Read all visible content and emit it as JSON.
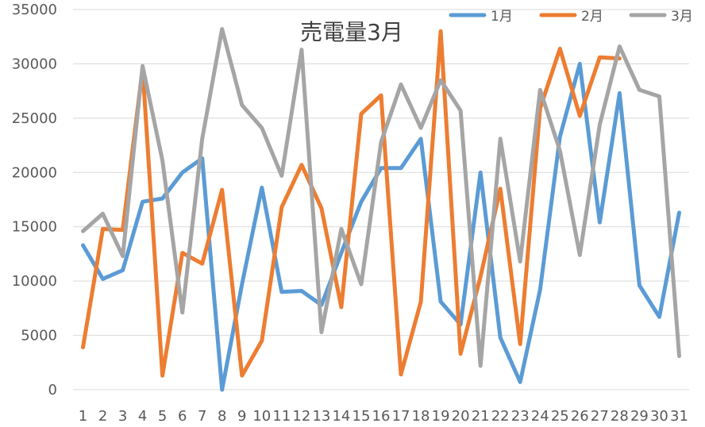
{
  "chart_data": {
    "type": "line",
    "title": "売電量3月",
    "xlabel": "",
    "ylabel": "",
    "ylim": [
      0,
      35000
    ],
    "yticks": [
      0,
      5000,
      10000,
      15000,
      20000,
      25000,
      30000,
      35000
    ],
    "grid": true,
    "legend_position": "top-right",
    "categories": [
      "1",
      "2",
      "3",
      "4",
      "5",
      "6",
      "7",
      "8",
      "9",
      "10",
      "11",
      "12",
      "13",
      "14",
      "15",
      "16",
      "17",
      "18",
      "19",
      "20",
      "21",
      "22",
      "23",
      "24",
      "25",
      "26",
      "27",
      "28",
      "29",
      "30",
      "31"
    ],
    "series": [
      {
        "name": "1月",
        "color": "#5b9bd5",
        "values": [
          13300,
          10200,
          11000,
          17300,
          17600,
          20000,
          21300,
          0,
          9700,
          18600,
          9000,
          9100,
          7800,
          12600,
          17300,
          20400,
          20400,
          23100,
          8100,
          6000,
          20000,
          4800,
          700,
          9200,
          23300,
          30000,
          15400,
          27300,
          9600,
          6700,
          16300
        ]
      },
      {
        "name": "2月",
        "color": "#ed7d31",
        "values": [
          3900,
          14800,
          14700,
          29600,
          1300,
          12600,
          11600,
          18400,
          1300,
          4500,
          16800,
          20700,
          16700,
          7600,
          25400,
          27100,
          1400,
          8100,
          33000,
          3300,
          10400,
          18500,
          4200,
          25900,
          31400,
          25200,
          30600,
          30500,
          null,
          null,
          null
        ]
      },
      {
        "name": "3月",
        "color": "#a5a5a5",
        "values": [
          14600,
          16200,
          12300,
          29800,
          21100,
          7100,
          23100,
          33200,
          26200,
          24100,
          19700,
          31300,
          5300,
          14800,
          9700,
          22800,
          28100,
          24100,
          28500,
          25700,
          2200,
          23100,
          11800,
          27600,
          22000,
          12400,
          24400,
          31600,
          27600,
          27000,
          3100
        ]
      }
    ]
  }
}
